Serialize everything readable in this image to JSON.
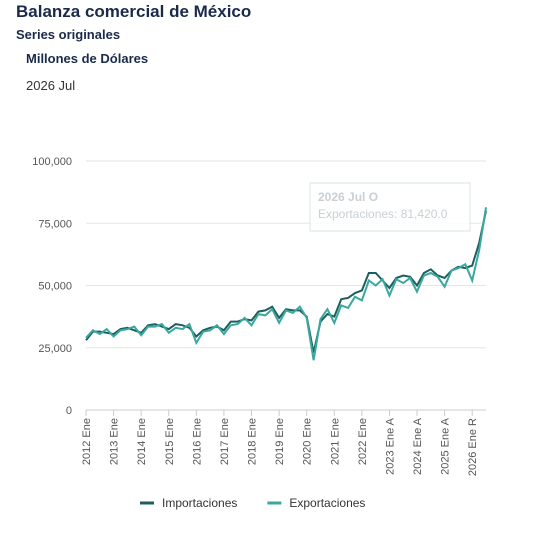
{
  "chart_data": {
    "type": "line",
    "title": "Balanza comercial de México",
    "subtitle": "Series originales",
    "unit_label": "Millones de Dólares",
    "period": "2026 Jul",
    "categories": [
      "2012 Ene",
      null,
      null,
      null,
      "2013 Ene",
      null,
      null,
      null,
      "2014 Ene",
      null,
      null,
      null,
      "2015 Ene",
      null,
      null,
      null,
      "2016 Ene",
      null,
      null,
      null,
      "2017 Ene",
      null,
      null,
      null,
      "2018 Ene",
      null,
      null,
      null,
      "2019 Ene",
      null,
      null,
      null,
      "2020 Ene",
      null,
      null,
      null,
      "2021 Ene",
      null,
      null,
      null,
      "2022 Ene",
      null,
      null,
      null,
      "2023 Ene A",
      null,
      null,
      null,
      "2024 Ene A",
      null,
      null,
      null,
      "2025 Ene A",
      null,
      null,
      null,
      "2026 Ene R",
      null,
      null
    ],
    "series": [
      {
        "name": "Importaciones",
        "color": "#1d5e5e",
        "values": [
          28000,
          31500,
          31500,
          31000,
          30500,
          32500,
          33000,
          32000,
          31000,
          34000,
          34500,
          33500,
          32500,
          34500,
          34000,
          33000,
          29500,
          32000,
          33000,
          33500,
          32000,
          35500,
          35500,
          36500,
          36000,
          39500,
          40000,
          41500,
          37000,
          40500,
          40000,
          40000,
          37500,
          23000,
          35500,
          38500,
          37500,
          44500,
          45000,
          47000,
          48000,
          55000,
          55000,
          52000,
          49000,
          53000,
          54000,
          53500,
          50000,
          55000,
          56500,
          54000,
          53000,
          56000,
          57500,
          57000,
          58000,
          67000,
          80000
        ]
      },
      {
        "name": "Exportaciones",
        "color": "#3aa89e",
        "values": [
          29000,
          32000,
          30500,
          32500,
          29500,
          32000,
          32500,
          33500,
          30000,
          33500,
          33500,
          34500,
          31000,
          33000,
          32500,
          34500,
          27000,
          31500,
          32000,
          34000,
          30500,
          34000,
          34500,
          37000,
          34000,
          38500,
          38000,
          40500,
          35000,
          40000,
          39000,
          41500,
          37000,
          20000,
          36500,
          40500,
          35000,
          42000,
          41000,
          45500,
          44000,
          52000,
          50000,
          52500,
          46000,
          52500,
          51000,
          53000,
          47500,
          54000,
          55000,
          53500,
          49500,
          56000,
          57000,
          58500,
          52000,
          64000,
          81420
        ]
      }
    ],
    "ylim": [
      0,
      100000
    ],
    "yticks": [
      0,
      {
        "value": 25000,
        "label": "25,000"
      },
      {
        "value": 50000,
        "label": "50,000"
      },
      {
        "value": 75000,
        "label": "75,000"
      },
      {
        "value": 100000,
        "label": "100,000"
      }
    ],
    "grid": true,
    "legend": "bottom",
    "tooltip": {
      "title": "2026 Jul O",
      "text": "Exportaciones: 81,420.0"
    }
  }
}
